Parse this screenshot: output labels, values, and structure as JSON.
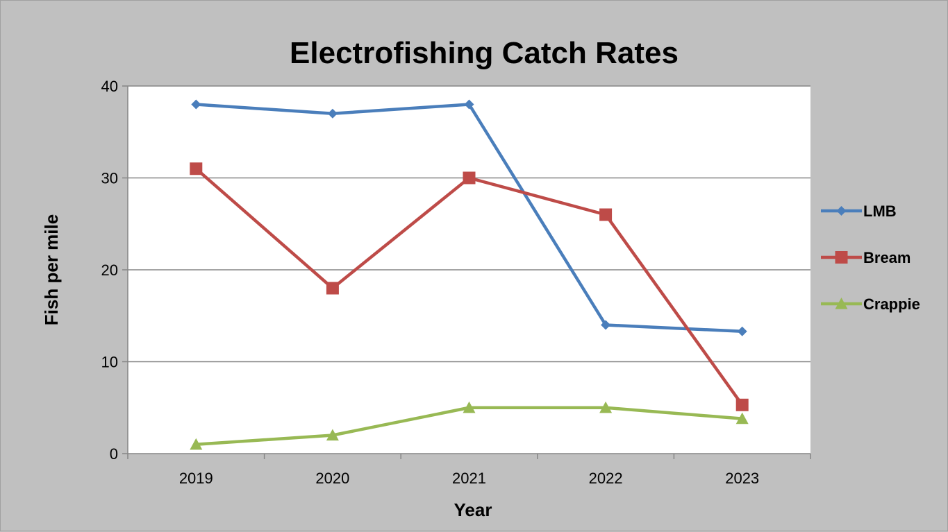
{
  "chart_data": {
    "type": "line",
    "title": "Electrofishing Catch Rates",
    "xlabel": "Year",
    "ylabel": "Fish per mile",
    "categories": [
      "2019",
      "2020",
      "2021",
      "2022",
      "2023"
    ],
    "ylim": [
      0,
      40
    ],
    "yticks": [
      0,
      10,
      20,
      30,
      40
    ],
    "grid": "horizontal",
    "legend_position": "right",
    "series": [
      {
        "name": "LMB",
        "values": [
          38,
          37,
          38,
          14,
          13.3
        ],
        "color": "#4a7ebb",
        "marker": "diamond"
      },
      {
        "name": "Bream",
        "values": [
          31,
          18,
          30,
          26,
          5.3
        ],
        "color": "#be4b48",
        "marker": "square"
      },
      {
        "name": "Crappie",
        "values": [
          1,
          2,
          5,
          5,
          3.8
        ],
        "color": "#98b954",
        "marker": "triangle"
      }
    ]
  }
}
